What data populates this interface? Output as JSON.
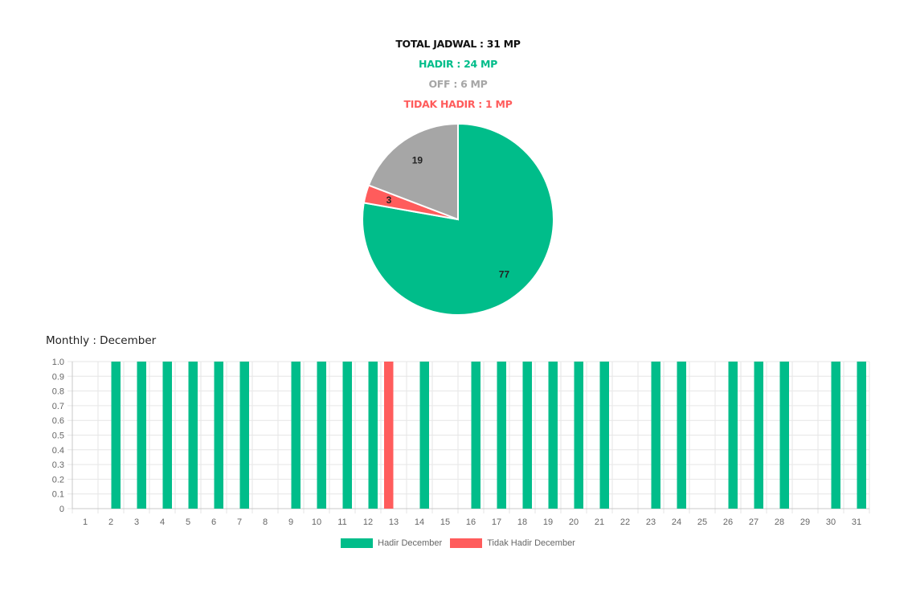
{
  "summary": {
    "total": "TOTAL JADWAL : 31 MP",
    "hadir": "HADIR : 24 MP",
    "off": "OFF : 6 MP",
    "tidak_hadir": "TIDAK HADIR : 1 MP"
  },
  "colors": {
    "hadir": "#00bd8a",
    "off": "#a6a6a6",
    "tidak_hadir": "#ff5c5c",
    "total": "#111111",
    "grid": "#e6e6e6"
  },
  "monthly_title": "Monthly : December",
  "chart_data": [
    {
      "type": "pie",
      "slices": [
        {
          "label": "77",
          "value": 77,
          "color": "#00bd8a"
        },
        {
          "label": "3",
          "value": 3,
          "color": "#ff5c5c"
        },
        {
          "label": "19",
          "value": 19,
          "color": "#a6a6a6"
        }
      ]
    },
    {
      "type": "bar",
      "categories": [
        "1",
        "2",
        "3",
        "4",
        "5",
        "6",
        "7",
        "8",
        "9",
        "10",
        "11",
        "12",
        "13",
        "14",
        "15",
        "16",
        "17",
        "18",
        "19",
        "20",
        "21",
        "22",
        "23",
        "24",
        "25",
        "26",
        "27",
        "28",
        "29",
        "30",
        "31"
      ],
      "series": [
        {
          "name": "Hadir December",
          "color": "#00bd8a",
          "values": [
            0,
            1,
            1,
            1,
            1,
            1,
            1,
            0,
            1,
            1,
            1,
            1,
            0,
            1,
            0,
            1,
            1,
            1,
            1,
            1,
            1,
            0,
            1,
            1,
            0,
            1,
            1,
            1,
            0,
            1,
            1
          ]
        },
        {
          "name": "Tidak Hadir December",
          "color": "#ff5c5c",
          "values": [
            0,
            0,
            0,
            0,
            0,
            0,
            0,
            0,
            0,
            0,
            0,
            0,
            1,
            0,
            0,
            0,
            0,
            0,
            0,
            0,
            0,
            0,
            0,
            0,
            0,
            0,
            0,
            0,
            0,
            0,
            0
          ]
        }
      ],
      "ylim": [
        0,
        1
      ],
      "yticks": [
        "1.0",
        "0.9",
        "0.8",
        "0.7",
        "0.6",
        "0.5",
        "0.4",
        "0.3",
        "0.2",
        "0.1",
        "0"
      ],
      "legend_position": "bottom",
      "grid": true
    }
  ]
}
